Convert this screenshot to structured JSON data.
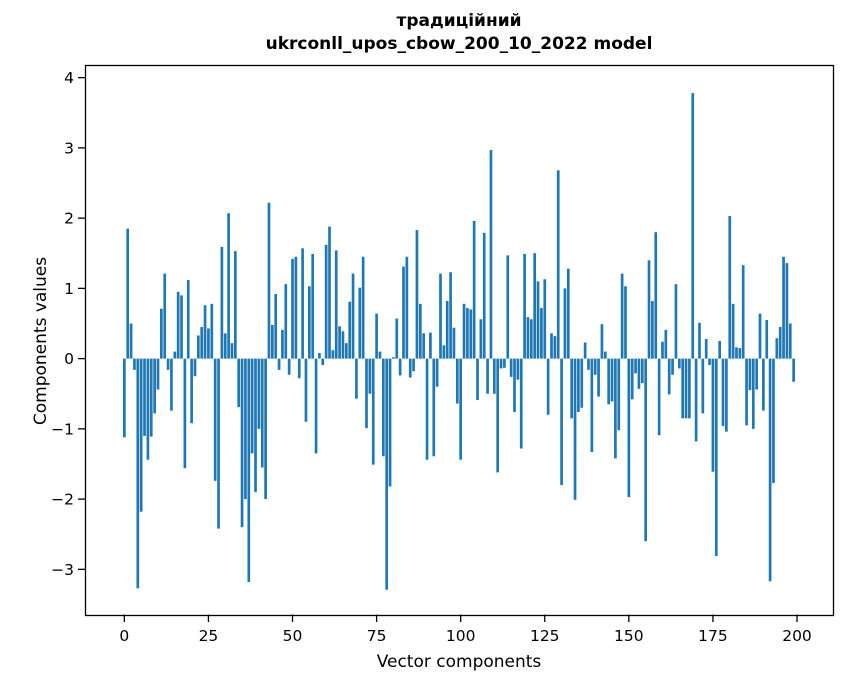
{
  "chart_data": {
    "type": "bar",
    "title_lines": [
      "традиційний",
      "ukrconll_upos_cbow_200_10_2022 model"
    ],
    "xlabel": "Vector components",
    "ylabel": "Components values",
    "xticks": [
      0,
      25,
      50,
      75,
      100,
      125,
      150,
      175,
      200
    ],
    "yticks": [
      4,
      3,
      2,
      1,
      0,
      -1,
      -2,
      -3
    ],
    "xlim": [
      -11.7,
      210.7
    ],
    "ylim": [
      -3.65,
      4.18
    ],
    "grid": false,
    "legend": null,
    "bar_color": "#1f77b4",
    "n_components": 200,
    "values": [
      -1.12,
      1.85,
      0.5,
      -0.16,
      -3.27,
      -2.18,
      -1.1,
      -1.44,
      -1.11,
      -0.78,
      -0.44,
      0.71,
      1.21,
      -0.16,
      -0.74,
      0.1,
      0.95,
      0.9,
      -1.56,
      1.12,
      -0.92,
      -0.25,
      0.33,
      0.45,
      0.76,
      0.43,
      0.78,
      -1.74,
      -2.42,
      1.59,
      0.36,
      2.07,
      0.22,
      1.53,
      -0.69,
      -2.4,
      -2.0,
      -3.18,
      -1.35,
      -1.9,
      -1.0,
      -1.55,
      -2.0,
      2.22,
      0.48,
      0.92,
      -0.16,
      0.41,
      1.06,
      -0.23,
      1.42,
      1.45,
      -0.28,
      1.57,
      -0.9,
      1.03,
      1.49,
      -1.35,
      0.08,
      -0.09,
      1.62,
      1.88,
      0.12,
      1.54,
      0.46,
      0.39,
      0.22,
      0.81,
      1.21,
      -0.57,
      1.01,
      1.45,
      -0.99,
      -0.5,
      -1.51,
      0.64,
      0.1,
      -1.39,
      -3.29,
      -1.82,
      0.02,
      0.57,
      -0.24,
      1.31,
      1.45,
      -0.27,
      -0.18,
      1.83,
      0.78,
      0.36,
      -1.44,
      0.37,
      -1.39,
      -0.4,
      1.21,
      0.19,
      0.82,
      1.23,
      0.44,
      -0.64,
      -1.44,
      0.78,
      0.72,
      0.7,
      1.96,
      -0.59,
      0.56,
      1.79,
      -0.5,
      2.97,
      -0.5,
      -1.62,
      -0.14,
      -0.13,
      1.47,
      -0.26,
      -0.76,
      -0.3,
      -1.28,
      1.49,
      0.59,
      0.56,
      1.5,
      1.1,
      0.72,
      1.13,
      -0.8,
      0.36,
      0.32,
      2.68,
      -1.8,
      1.0,
      1.28,
      -0.85,
      -2.01,
      -0.76,
      -0.7,
      0.23,
      -0.16,
      -1.33,
      -0.23,
      -0.54,
      0.49,
      0.1,
      -0.65,
      -0.61,
      -1.42,
      -1.02,
      1.21,
      1.03,
      -1.97,
      -0.58,
      -0.21,
      -0.43,
      -0.35,
      -2.6,
      1.4,
      0.82,
      1.8,
      -1.09,
      0.24,
      0.41,
      -0.51,
      -0.23,
      1.06,
      -0.14,
      -0.85,
      -0.85,
      -0.85,
      3.78,
      -1.18,
      0.51,
      -0.78,
      0.28,
      -0.09,
      -1.61,
      -2.81,
      0.25,
      -0.96,
      -1.04,
      2.03,
      0.78,
      0.16,
      0.15,
      1.33,
      -0.95,
      -0.45,
      -1.0,
      -0.44,
      0.64,
      -0.74,
      0.55,
      -3.17,
      -1.77,
      0.29,
      0.45,
      1.45,
      1.36,
      0.5,
      -0.33
    ]
  }
}
